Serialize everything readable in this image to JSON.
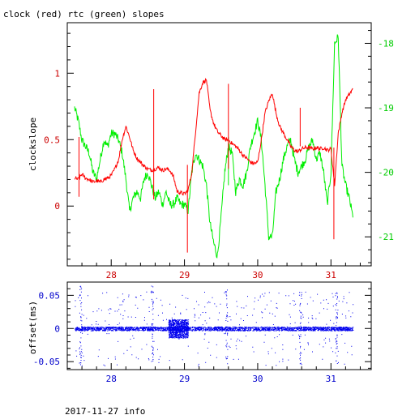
{
  "chart_data": [
    {
      "type": "line",
      "title": "clock (red) rtc (green) slopes",
      "ylabel": "clockslope",
      "xlim": [
        27.4,
        31.55
      ],
      "ylim": [
        -0.45,
        1.38
      ],
      "y2lim": [
        -21.45,
        -17.68
      ],
      "xticks": [
        "28",
        "29",
        "30",
        "31"
      ],
      "yticks": [
        "1",
        "0.5",
        "0"
      ],
      "y2ticks": [
        "-18",
        "-19",
        "-20",
        "-21"
      ],
      "grid": false,
      "colors": {
        "clock": "#ff0000",
        "rtc": "#00ee00",
        "axis_left": "#cc0000",
        "axis_right": "#00cc00",
        "axis_x": "#cc0000"
      },
      "series": [
        {
          "name": "clock",
          "axis": "left",
          "x": [
            27.5,
            27.55,
            27.6,
            27.65,
            27.7,
            27.75,
            27.8,
            27.85,
            27.9,
            27.95,
            28.0,
            28.05,
            28.1,
            28.15,
            28.2,
            28.25,
            28.3,
            28.35,
            28.4,
            28.45,
            28.5,
            28.55,
            28.6,
            28.65,
            28.7,
            28.75,
            28.8,
            28.85,
            28.9,
            28.95,
            29.0,
            29.05,
            29.1,
            29.15,
            29.2,
            29.25,
            29.3,
            29.35,
            29.4,
            29.45,
            29.5,
            29.55,
            29.6,
            29.65,
            29.7,
            29.75,
            29.8,
            29.85,
            29.9,
            29.95,
            30.0,
            30.05,
            30.1,
            30.15,
            30.2,
            30.25,
            30.3,
            30.35,
            30.4,
            30.45,
            30.5,
            30.55,
            30.6,
            30.65,
            30.7,
            30.75,
            30.8,
            30.85,
            30.9,
            30.95,
            31.0,
            31.05,
            31.1,
            31.15,
            31.2,
            31.25,
            31.3
          ],
          "y": [
            0.21,
            0.2,
            0.24,
            0.21,
            0.2,
            0.18,
            0.19,
            0.18,
            0.2,
            0.21,
            0.23,
            0.28,
            0.35,
            0.5,
            0.6,
            0.52,
            0.42,
            0.36,
            0.33,
            0.3,
            0.28,
            0.27,
            0.28,
            0.29,
            0.27,
            0.28,
            0.27,
            0.22,
            0.11,
            0.1,
            0.09,
            0.12,
            0.25,
            0.55,
            0.85,
            0.93,
            0.95,
            0.72,
            0.62,
            0.56,
            0.53,
            0.5,
            0.5,
            0.47,
            0.45,
            0.42,
            0.38,
            0.36,
            0.33,
            0.32,
            0.33,
            0.5,
            0.7,
            0.79,
            0.85,
            0.7,
            0.6,
            0.55,
            0.5,
            0.45,
            0.42,
            0.41,
            0.43,
            0.44,
            0.44,
            0.43,
            0.44,
            0.43,
            0.44,
            0.42,
            0.43,
            0.16,
            0.55,
            0.7,
            0.8,
            0.84,
            0.88
          ],
          "spikes": [
            [
              27.56,
              0.07,
              0.52
            ],
            [
              28.58,
              0.05,
              0.88
            ],
            [
              29.04,
              -0.35,
              0.31
            ],
            [
              29.6,
              0.28,
              0.92
            ],
            [
              30.58,
              0.45,
              0.74
            ],
            [
              31.04,
              -0.25,
              0.44
            ]
          ]
        },
        {
          "name": "rtc",
          "axis": "right",
          "x": [
            27.5,
            27.55,
            27.6,
            27.65,
            27.7,
            27.75,
            27.8,
            27.85,
            27.9,
            27.95,
            28.0,
            28.05,
            28.1,
            28.15,
            28.2,
            28.25,
            28.3,
            28.35,
            28.4,
            28.45,
            28.5,
            28.55,
            28.6,
            28.65,
            28.7,
            28.75,
            28.8,
            28.85,
            28.9,
            28.95,
            29.0,
            29.05,
            29.1,
            29.15,
            29.2,
            29.25,
            29.3,
            29.35,
            29.4,
            29.45,
            29.5,
            29.55,
            29.6,
            29.65,
            29.7,
            29.75,
            29.8,
            29.85,
            29.9,
            29.95,
            30.0,
            30.05,
            30.1,
            30.15,
            30.2,
            30.25,
            30.3,
            30.35,
            30.4,
            30.45,
            30.5,
            30.55,
            30.6,
            30.65,
            30.7,
            30.75,
            30.8,
            30.85,
            30.9,
            30.95,
            31.0,
            31.05,
            31.1,
            31.15,
            31.2,
            31.25,
            31.3
          ],
          "y": [
            -19.0,
            -19.2,
            -19.5,
            -19.6,
            -19.7,
            -20.0,
            -20.1,
            -19.8,
            -19.5,
            -19.6,
            -19.4,
            -19.4,
            -19.5,
            -19.7,
            -20.1,
            -20.6,
            -20.4,
            -20.3,
            -20.4,
            -20.1,
            -20.0,
            -20.2,
            -20.4,
            -20.3,
            -20.5,
            -20.3,
            -20.5,
            -20.5,
            -20.4,
            -20.5,
            -20.5,
            -20.6,
            -20.0,
            -19.7,
            -19.8,
            -19.9,
            -20.2,
            -20.8,
            -21.1,
            -21.3,
            -20.7,
            -20.0,
            -19.6,
            -19.7,
            -20.3,
            -20.1,
            -20.2,
            -20.0,
            -19.6,
            -19.4,
            -19.2,
            -19.5,
            -20.2,
            -21.0,
            -21.0,
            -20.3,
            -20.1,
            -19.8,
            -19.6,
            -19.5,
            -19.8,
            -20.0,
            -19.9,
            -19.8,
            -19.6,
            -19.5,
            -19.8,
            -19.7,
            -20.0,
            -20.5,
            -20.0,
            -18.0,
            -17.9,
            -19.9,
            -20.2,
            -20.4,
            -20.7
          ],
          "spikes": [
            [
              29.6,
              -19.45,
              -20.2
            ]
          ]
        }
      ]
    },
    {
      "type": "scatter",
      "ylabel": "offset(ms)",
      "xlim": [
        27.4,
        31.55
      ],
      "ylim": [
        -0.062,
        0.07
      ],
      "xticks": [
        "28",
        "29",
        "30",
        "31"
      ],
      "yticks": [
        "0.05",
        "0",
        "-0.05"
      ],
      "grid": false,
      "colors": {
        "points": "#0000ee",
        "axis": "#0000cc"
      },
      "series": [
        {
          "name": "offset",
          "x_range": [
            27.5,
            31.3
          ],
          "band": 0.003,
          "noisy_region": [
            28.78,
            29.05,
            0.014
          ],
          "vertical_scatter_at": [
            27.58,
            28.56,
            29.57,
            30.58,
            31.07
          ]
        }
      ]
    }
  ],
  "footer": "2017-11-27 info"
}
